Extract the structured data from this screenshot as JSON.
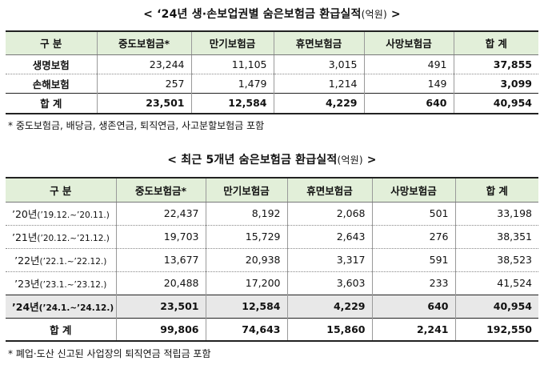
{
  "table1": {
    "title": "< ‘24년 생·손보업권별 숨은보험금 환급실적",
    "unit": "(억원)",
    "title_end": " >",
    "headers": [
      "구  분",
      "중도보험금*",
      "만기보험금",
      "휴면보험금",
      "사망보험금",
      "합  계"
    ],
    "rows": [
      {
        "label": "생명보험",
        "values": [
          "23,244",
          "11,105",
          "3,015",
          "491",
          "37,855"
        ]
      },
      {
        "label": "손해보험",
        "values": [
          "257",
          "1,479",
          "1,214",
          "149",
          "3,099"
        ]
      }
    ],
    "total": {
      "label": "합  계",
      "values": [
        "23,501",
        "12,584",
        "4,229",
        "640",
        "40,954"
      ]
    },
    "note": "* 중도보험금, 배당금, 생존연금, 퇴직연금, 사고분할보험금 포함"
  },
  "table2": {
    "title": "< 최근 5개년 숨은보험금 환급실적",
    "unit": "(억원)",
    "title_end": " >",
    "headers": [
      "구  분",
      "중도보험금*",
      "만기보험금",
      "휴면보험금",
      "사망보험금",
      "합  계"
    ],
    "rows": [
      {
        "year": "’20년",
        "period": "(’19.12.~’20.11.)",
        "values": [
          "22,437",
          "8,192",
          "2,068",
          "501",
          "33,198"
        ]
      },
      {
        "year": "’21년",
        "period": "(’20.12.~’21.12.)",
        "values": [
          "19,703",
          "15,729",
          "2,643",
          "276",
          "38,351"
        ]
      },
      {
        "year": "’22년",
        "period": "(’22.1.~’22.12.)",
        "values": [
          "13,677",
          "20,938",
          "3,317",
          "591",
          "38,523"
        ]
      },
      {
        "year": "’23년",
        "period": "(’23.1.~’23.12.)",
        "values": [
          "20,488",
          "17,200",
          "3,603",
          "233",
          "41,524"
        ]
      },
      {
        "year": "’24년",
        "period": "(’24.1.~’24.12.)",
        "values": [
          "23,501",
          "12,584",
          "4,229",
          "640",
          "40,954"
        ]
      }
    ],
    "total": {
      "label": "합  계",
      "values": [
        "99,806",
        "74,643",
        "15,860",
        "2,241",
        "192,550"
      ]
    },
    "note": "* 폐업·도산 신고된 사업장의 퇴직연금 적립금 포함"
  }
}
